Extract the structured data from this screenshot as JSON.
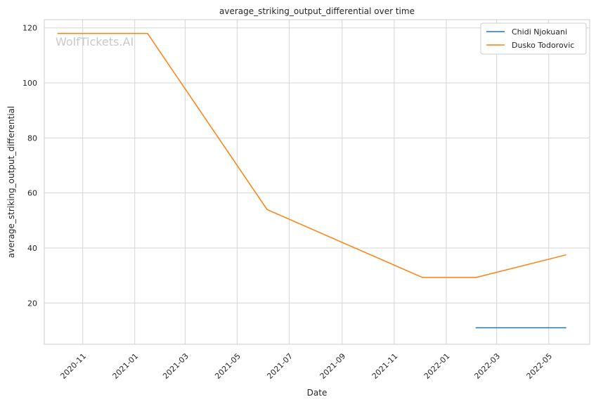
{
  "chart_data": {
    "type": "line",
    "title": "average_striking_output_differential over time",
    "xlabel": "Date",
    "ylabel": "average_striking_output_differential",
    "watermark": "WolfTickets.AI",
    "x_ticks": [
      "2020-11",
      "2021-01",
      "2021-03",
      "2021-05",
      "2021-07",
      "2021-09",
      "2021-11",
      "2022-01",
      "2022-03",
      "2022-05"
    ],
    "y_ticks": [
      20,
      40,
      60,
      80,
      100,
      120
    ],
    "xlim": [
      "2020-09-17",
      "2022-06-18"
    ],
    "ylim": [
      5,
      123
    ],
    "grid": true,
    "legend_position": "top-right",
    "series": [
      {
        "name": "Chidi Njokuani",
        "color": "#1f77b4",
        "points": [
          {
            "x": "2022-02-05",
            "y": 11
          },
          {
            "x": "2022-05-21",
            "y": 11
          }
        ]
      },
      {
        "name": "Dusko Todorovic",
        "color": "#ff7f0e",
        "points": [
          {
            "x": "2020-10-03",
            "y": 118
          },
          {
            "x": "2021-01-16",
            "y": 118
          },
          {
            "x": "2021-06-05",
            "y": 54
          },
          {
            "x": "2021-12-04",
            "y": 29.3
          },
          {
            "x": "2022-02-05",
            "y": 29.3
          },
          {
            "x": "2022-05-21",
            "y": 37.5
          }
        ]
      }
    ]
  }
}
